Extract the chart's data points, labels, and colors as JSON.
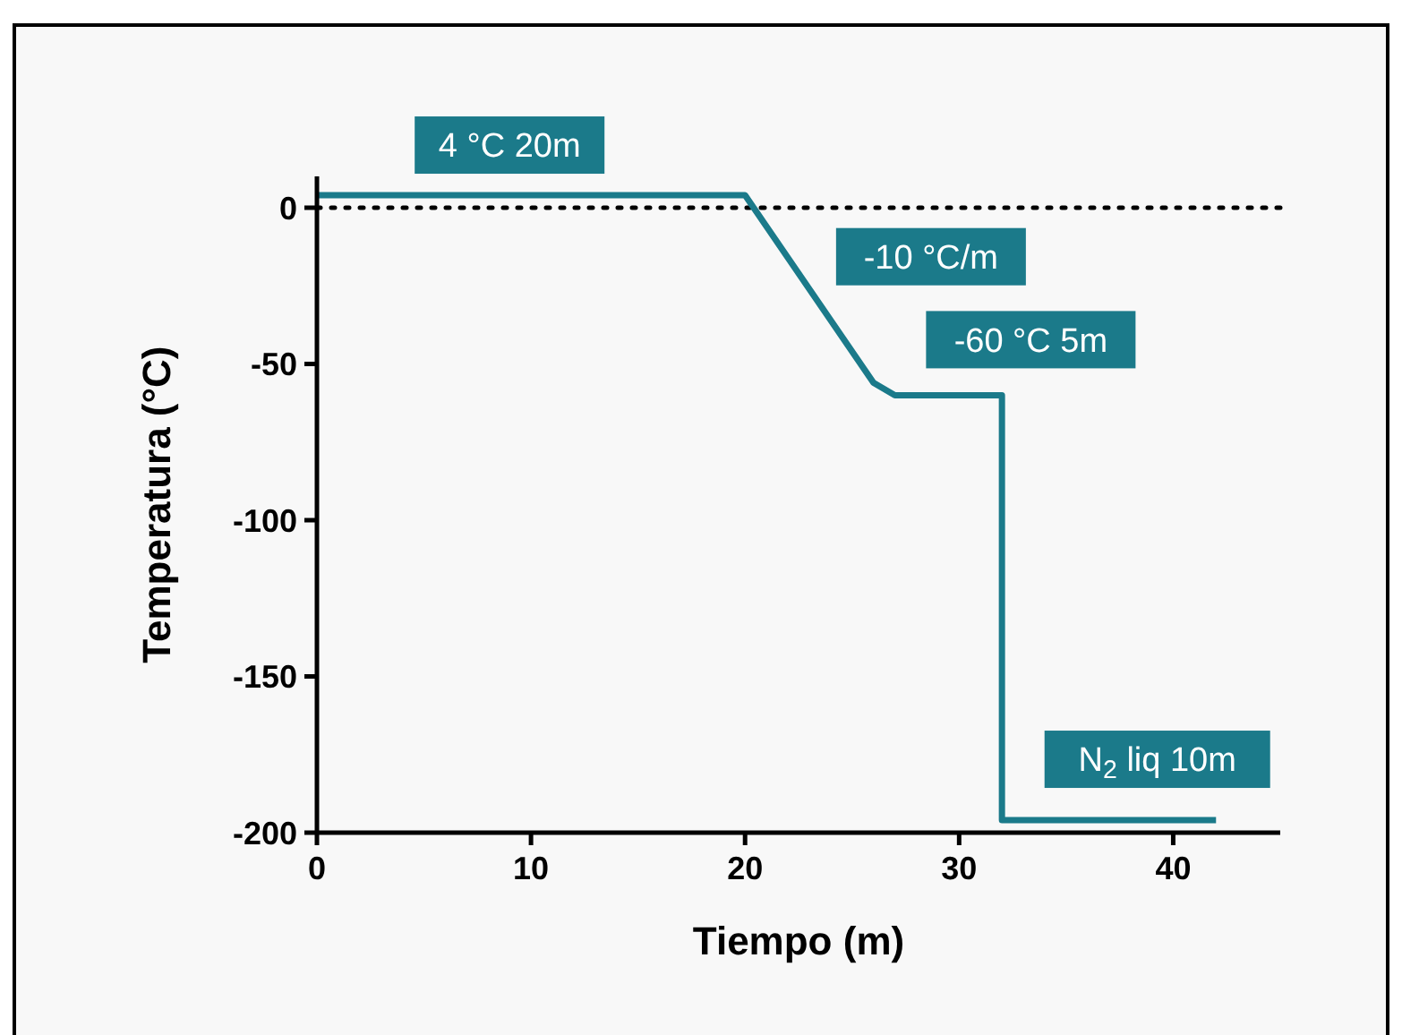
{
  "chart_data": {
    "type": "line",
    "xlabel": "Tiempo (m)",
    "ylabel": "Temperatura (°C)",
    "x": [
      0,
      20,
      26,
      27,
      32,
      32,
      42
    ],
    "series": [
      {
        "color": "#1b7a8a",
        "values": [
          4,
          4,
          -56,
          -60,
          -60,
          -196,
          -196
        ]
      }
    ],
    "xlim": [
      0,
      45
    ],
    "xticks": [
      0,
      10,
      20,
      30,
      40
    ],
    "ylim": [
      -200,
      10
    ],
    "yticks": [
      0,
      -50,
      -100,
      -150,
      -200
    ],
    "grid": false,
    "marker": "none",
    "line_style": "solid",
    "ref_lines": [
      {
        "axis": "y",
        "value": 0,
        "line_style": "dotted",
        "color": "#000000"
      }
    ],
    "annotations": [
      {
        "text": "4 °C 20m",
        "x": 9,
        "y": 4
      },
      {
        "text": "-10 °C/m",
        "x": 24,
        "y": -30
      },
      {
        "text": "-60 °C 5m",
        "x": 29.5,
        "y": -60
      },
      {
        "text": "N$_{2}$ liq 10m",
        "x": 37,
        "y": -196
      }
    ]
  }
}
